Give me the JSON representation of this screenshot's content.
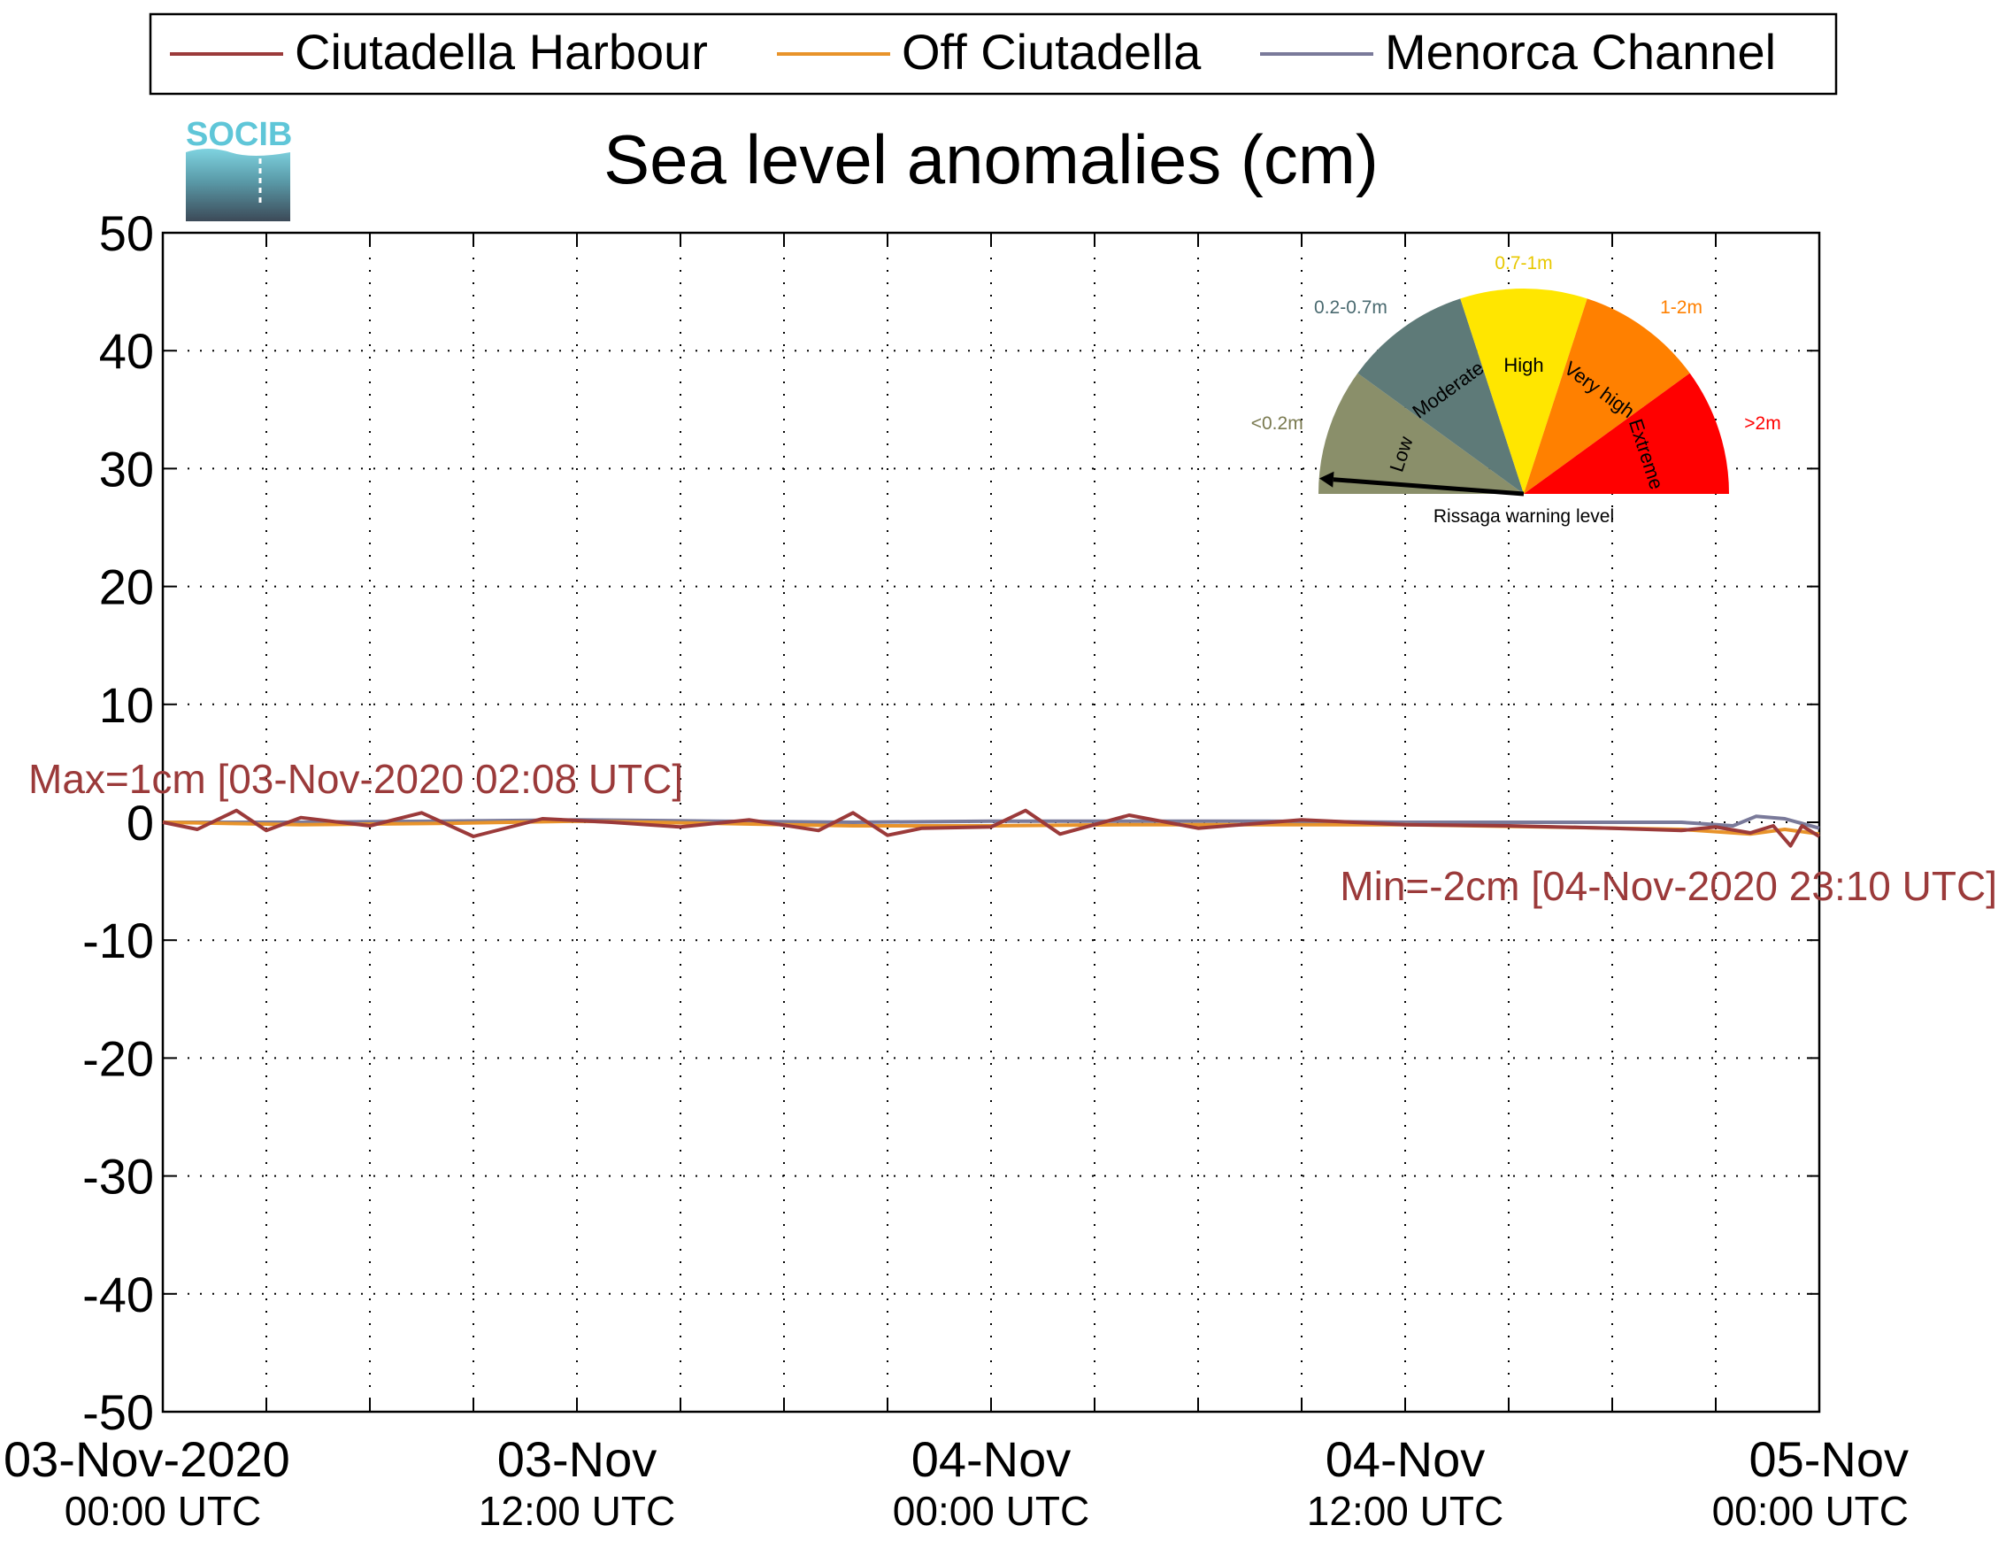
{
  "logo": {
    "text": "SOCIB",
    "icon": "socib-logo"
  },
  "colors": {
    "harbour": "#9b3a3a",
    "off": "#e8932a",
    "channel": "#7a7a9a",
    "annotation": "#9b3a3a"
  },
  "chart_data": {
    "type": "line",
    "title": "Sea level anomalies (cm)",
    "xlabel": "",
    "ylabel": "",
    "ylim": [
      -50,
      50
    ],
    "yticks": [
      50,
      40,
      30,
      20,
      10,
      0,
      -10,
      -20,
      -30,
      -40,
      -50
    ],
    "xlim": [
      "2020-11-03 00:00",
      "2020-11-05 00:00"
    ],
    "xticks": [
      {
        "t": "2020-11-03 00:00",
        "line1": "03-Nov-2020",
        "line2": "00:00 UTC"
      },
      {
        "t": "2020-11-03 12:00",
        "line1": "03-Nov",
        "line2": "12:00 UTC"
      },
      {
        "t": "2020-11-04 00:00",
        "line1": "04-Nov",
        "line2": "00:00 UTC"
      },
      {
        "t": "2020-11-04 12:00",
        "line1": "04-Nov",
        "line2": "12:00 UTC"
      },
      {
        "t": "2020-11-05 00:00",
        "line1": "05-Nov",
        "line2": "00:00 UTC"
      }
    ],
    "grid": true,
    "legend_position": "top",
    "series": [
      {
        "name": "Ciutadella Harbour",
        "color": "#9b3a3a",
        "x": [
          "2020-11-03 00:00",
          "2020-11-03 01:00",
          "2020-11-03 02:08",
          "2020-11-03 03:00",
          "2020-11-03 04:00",
          "2020-11-03 06:00",
          "2020-11-03 07:30",
          "2020-11-03 09:00",
          "2020-11-03 11:00",
          "2020-11-03 13:00",
          "2020-11-03 15:00",
          "2020-11-03 17:00",
          "2020-11-03 19:00",
          "2020-11-03 20:00",
          "2020-11-03 21:00",
          "2020-11-03 22:00",
          "2020-11-04 00:00",
          "2020-11-04 01:00",
          "2020-11-04 02:00",
          "2020-11-04 04:00",
          "2020-11-04 06:00",
          "2020-11-04 09:00",
          "2020-11-04 12:00",
          "2020-11-04 15:00",
          "2020-11-04 18:00",
          "2020-11-04 20:00",
          "2020-11-04 21:00",
          "2020-11-04 22:00",
          "2020-11-04 22:40",
          "2020-11-04 23:10",
          "2020-11-04 23:30",
          "2020-11-05 00:00"
        ],
        "y": [
          0,
          -0.6,
          1,
          -0.7,
          0.4,
          -0.3,
          0.8,
          -1.2,
          0.3,
          0,
          -0.4,
          0.2,
          -0.7,
          0.8,
          -1.1,
          -0.5,
          -0.4,
          1,
          -1,
          0.6,
          -0.5,
          0.2,
          -0.2,
          -0.3,
          -0.5,
          -0.7,
          -0.4,
          -0.9,
          -0.3,
          -2,
          -0.3,
          -1.2
        ]
      },
      {
        "name": "Off Ciutadella",
        "color": "#e8932a",
        "x": [
          "2020-11-03 00:00",
          "2020-11-03 04:00",
          "2020-11-03 08:00",
          "2020-11-03 12:00",
          "2020-11-03 16:00",
          "2020-11-03 20:00",
          "2020-11-04 00:00",
          "2020-11-04 04:00",
          "2020-11-04 08:00",
          "2020-11-04 12:00",
          "2020-11-04 16:00",
          "2020-11-04 20:00",
          "2020-11-04 22:00",
          "2020-11-04 23:00",
          "2020-11-05 00:00"
        ],
        "y": [
          0,
          -0.2,
          -0.1,
          0.1,
          -0.1,
          -0.3,
          -0.3,
          -0.2,
          -0.2,
          -0.2,
          -0.4,
          -0.6,
          -1,
          -0.6,
          -1
        ]
      },
      {
        "name": "Menorca Channel",
        "color": "#7a7a9a",
        "x": [
          "2020-11-03 00:00",
          "2020-11-03 04:00",
          "2020-11-03 08:00",
          "2020-11-03 12:00",
          "2020-11-03 16:00",
          "2020-11-03 20:00",
          "2020-11-04 00:00",
          "2020-11-04 04:00",
          "2020-11-04 08:00",
          "2020-11-04 12:00",
          "2020-11-04 16:00",
          "2020-11-04 20:00",
          "2020-11-04 21:30",
          "2020-11-04 22:10",
          "2020-11-04 23:00",
          "2020-11-05 00:00"
        ],
        "y": [
          0,
          0,
          0.1,
          0.2,
          0.1,
          0,
          0.1,
          0.1,
          0.1,
          0,
          0,
          0,
          -0.3,
          0.5,
          0.3,
          -0.5
        ]
      }
    ],
    "annotations": {
      "max": "Max=1cm [03-Nov-2020 02:08 UTC]",
      "min": "Min=-2cm [04-Nov-2020 23:10 UTC]"
    },
    "gauge": {
      "caption": "Rissaga warning level",
      "segments": [
        {
          "label": "Low",
          "range": "<0.2m",
          "color": "#8a8f6a",
          "range_color": "#7a7a50"
        },
        {
          "label": "Moderate",
          "range": "0.2-0.7m",
          "color": "#5e7a78",
          "range_color": "#4a6a70"
        },
        {
          "label": "High",
          "range": "0.7-1m",
          "color": "#ffe600",
          "range_color": "#e8c800"
        },
        {
          "label": "Very high",
          "range": "1-2m",
          "color": "#ff8000",
          "range_color": "#ff8000"
        },
        {
          "label": "Extreme",
          "range": ">2m",
          "color": "#ff0000",
          "range_color": "#ff0000"
        }
      ],
      "current_level": "Low"
    }
  }
}
